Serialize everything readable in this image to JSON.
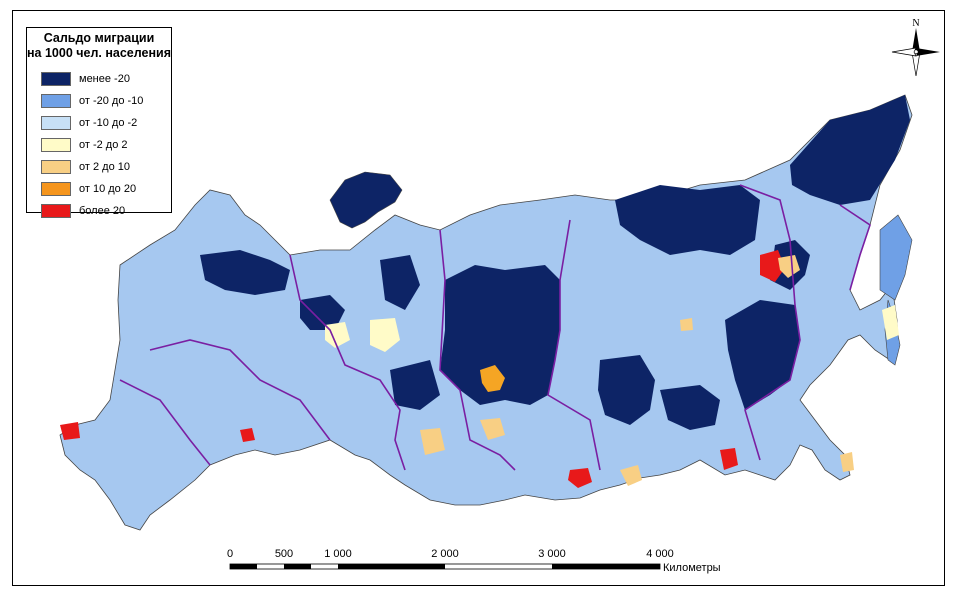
{
  "legend": {
    "title_line1": "Сальдо миграции",
    "title_line2": "на 1000 чел. населения",
    "items": [
      {
        "label": "менее -20",
        "color": "#0d2466"
      },
      {
        "label": "от -20 до -10",
        "color": "#6fa0e6"
      },
      {
        "label": "от -10 до -2",
        "color": "#c7e0f6"
      },
      {
        "label": "от -2 до 2",
        "color": "#fffbc8"
      },
      {
        "label": "от 2 до 10",
        "color": "#f8cf84"
      },
      {
        "label": "от 10 до 20",
        "color": "#f5951d"
      },
      {
        "label": "более 20",
        "color": "#e8191a"
      }
    ]
  },
  "north_arrow": {
    "label": "N"
  },
  "scale_bar": {
    "ticks": [
      "0",
      "500",
      "1 000",
      "2 000",
      "3 000",
      "4 000"
    ],
    "unit": "Километры"
  },
  "colors": {
    "district_border": "#7a1fa2",
    "region_border": "#555555"
  }
}
